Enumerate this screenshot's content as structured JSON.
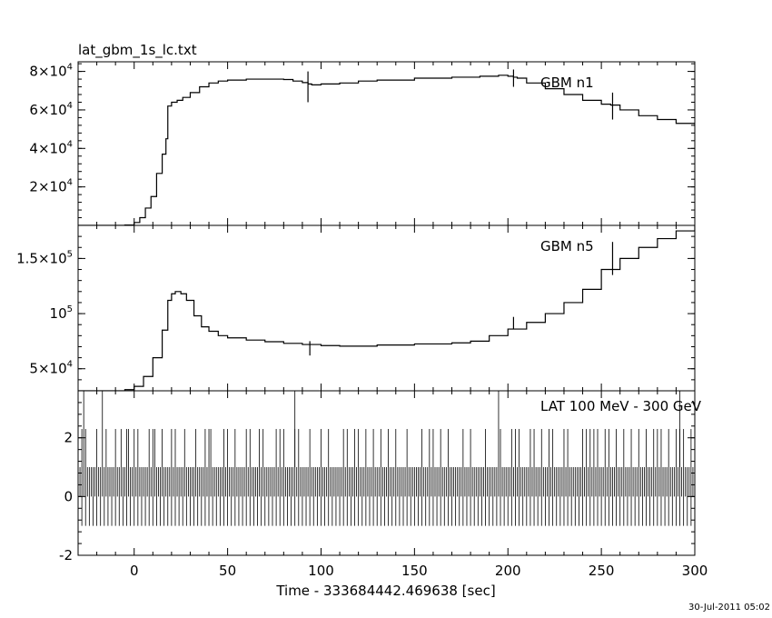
{
  "header": {
    "title": "lat_gbm_1s_lc.txt"
  },
  "footer": {
    "timestamp": "30-Jul-2011 05:02"
  },
  "chart_data": [
    {
      "type": "line",
      "name_label": "GBM n1",
      "xlim": [
        -30,
        300
      ],
      "ylim": [
        0,
        85000
      ],
      "yticks": [
        {
          "v": 20000,
          "m": "2",
          "e": "4"
        },
        {
          "v": 40000,
          "m": "4",
          "e": "4"
        },
        {
          "v": 60000,
          "m": "6",
          "e": "4"
        },
        {
          "v": 80000,
          "m": "8",
          "e": "4"
        }
      ],
      "x": [
        -30,
        -15,
        -5,
        0,
        3,
        6,
        9,
        12,
        15,
        17,
        18,
        20,
        23,
        26,
        30,
        35,
        40,
        45,
        50,
        60,
        70,
        80,
        85,
        90,
        93,
        95,
        100,
        110,
        120,
        130,
        150,
        170,
        185,
        195,
        200,
        203,
        205,
        210,
        220,
        230,
        240,
        250,
        255,
        260,
        270,
        280,
        290,
        300
      ],
      "y": [
        0,
        0,
        200,
        1500,
        4000,
        9000,
        15000,
        27000,
        37000,
        45000,
        62000,
        64000,
        65000,
        66500,
        69000,
        72000,
        74000,
        75000,
        75500,
        76000,
        76000,
        75800,
        75000,
        74200,
        73500,
        73000,
        73500,
        74000,
        75000,
        75500,
        76500,
        77000,
        77500,
        78000,
        77500,
        77000,
        76500,
        74000,
        71000,
        68000,
        65000,
        63000,
        62500,
        60000,
        57000,
        55000,
        53000,
        51500
      ],
      "glitches": [
        {
          "x": 93,
          "lo": 64000,
          "hi": 80000
        },
        {
          "x": 203,
          "lo": 72000,
          "hi": 81000
        },
        {
          "x": 256,
          "lo": 55000,
          "hi": 69000
        }
      ]
    },
    {
      "type": "line",
      "name_label": "GBM n5",
      "xlim": [
        -30,
        300
      ],
      "ylim": [
        30000,
        180000
      ],
      "yticks": [
        {
          "v": 50000,
          "m": "5",
          "e": "4"
        },
        {
          "v": 100000,
          "m": "",
          "e": "5"
        },
        {
          "v": 150000,
          "m": "1.5",
          "e": "5"
        }
      ],
      "x": [
        -30,
        -15,
        -5,
        0,
        5,
        10,
        15,
        18,
        20,
        22,
        25,
        28,
        32,
        36,
        40,
        45,
        50,
        60,
        70,
        80,
        90,
        100,
        110,
        130,
        150,
        170,
        180,
        190,
        200,
        210,
        220,
        230,
        240,
        250,
        260,
        270,
        280,
        290,
        300
      ],
      "y": [
        30000,
        30000,
        31000,
        34000,
        43000,
        60000,
        85000,
        112000,
        118000,
        120000,
        118000,
        112000,
        98000,
        88000,
        84000,
        80000,
        78000,
        76000,
        74500,
        73000,
        72000,
        71000,
        70500,
        71500,
        72500,
        73500,
        75000,
        80000,
        86000,
        92000,
        100000,
        110000,
        122000,
        140000,
        150000,
        160000,
        168000,
        175000,
        180000
      ],
      "glitches": [
        {
          "x": 94,
          "lo": 62000,
          "hi": 75000
        },
        {
          "x": 203,
          "lo": 86000,
          "hi": 97000
        },
        {
          "x": 256,
          "lo": 135000,
          "hi": 165000
        }
      ]
    },
    {
      "type": "line",
      "name_label": "LAT 100 MeV - 300 GeV",
      "xlim": [
        -30,
        300
      ],
      "ylim": [
        -2,
        3.6
      ],
      "yticks": [
        {
          "v": -2,
          "m": "-2",
          "e": ""
        },
        {
          "v": 0,
          "m": "0",
          "e": ""
        },
        {
          "v": 2,
          "m": "2",
          "e": ""
        }
      ],
      "spikes_3": [
        -27,
        -17,
        86,
        195,
        292
      ],
      "spikes_2": [
        -30,
        -28,
        -26,
        -20,
        -15,
        -10,
        -7,
        -4,
        -3,
        0,
        2,
        8,
        10,
        11,
        15,
        20,
        22,
        27,
        33,
        38,
        40,
        41,
        48,
        50,
        54,
        60,
        62,
        67,
        69,
        76,
        78,
        80,
        86,
        88,
        94,
        100,
        104,
        112,
        114,
        118,
        120,
        124,
        128,
        132,
        136,
        140,
        146,
        154,
        158,
        160,
        164,
        168,
        176,
        180,
        188,
        196,
        202,
        204,
        206,
        212,
        214,
        218,
        222,
        224,
        230,
        232,
        240,
        242,
        244,
        246,
        248,
        252,
        254,
        258,
        262,
        266,
        270,
        274,
        278,
        280,
        282,
        286,
        290,
        292,
        294,
        298
      ]
    }
  ],
  "x_axis": {
    "label": "Time - 333684442.469638 [sec]",
    "ticks": [
      {
        "v": 0,
        "t": "0"
      },
      {
        "v": 50,
        "t": "50"
      },
      {
        "v": 100,
        "t": "100"
      },
      {
        "v": 150,
        "t": "150"
      },
      {
        "v": 200,
        "t": "200"
      },
      {
        "v": 250,
        "t": "250"
      },
      {
        "v": 300,
        "t": "300"
      }
    ]
  }
}
